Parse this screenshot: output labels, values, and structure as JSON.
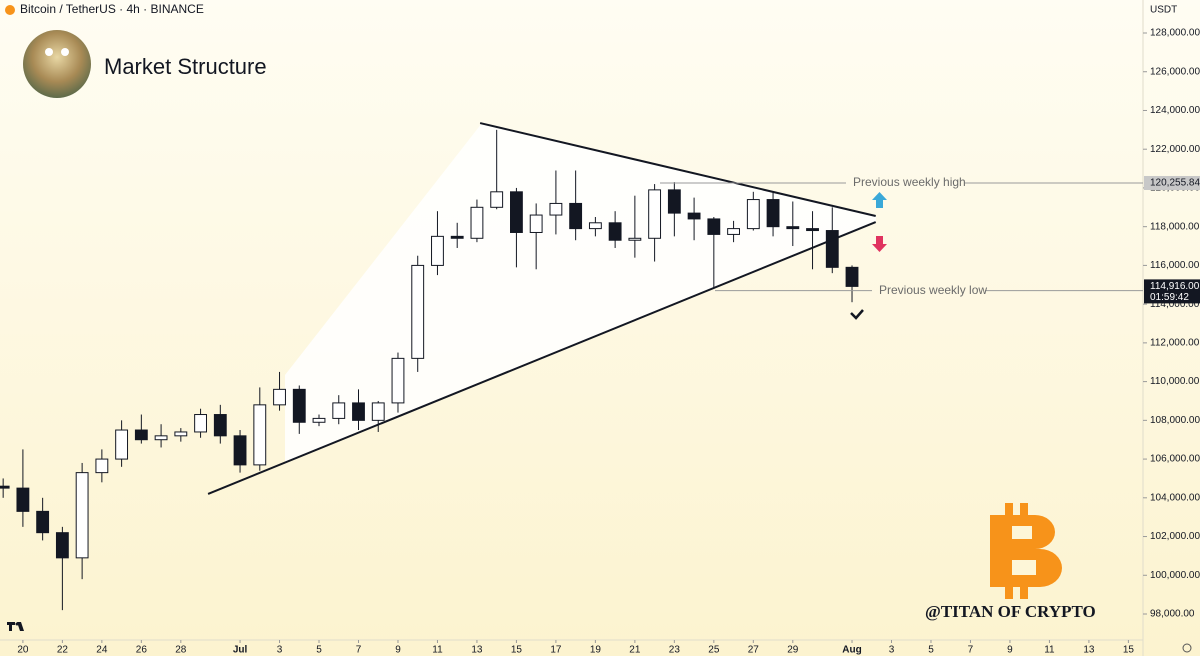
{
  "header": {
    "symbol": "Bitcoin / TetherUS · 4h · BINANCE",
    "currency": "USDT"
  },
  "chart_data": {
    "type": "candlestick",
    "title": "Market Structure",
    "x": [
      -1,
      0,
      1,
      2,
      3,
      4,
      5,
      6,
      7,
      8,
      9,
      10,
      11,
      12,
      13,
      14,
      15,
      16,
      17,
      18,
      19,
      20,
      21,
      22,
      23,
      24,
      25,
      26,
      27,
      28,
      29,
      30,
      31,
      32,
      33,
      34,
      35,
      36,
      37,
      38,
      39,
      40,
      41,
      42
    ],
    "open": [
      104600,
      104500,
      103300,
      102200,
      100900,
      105300,
      106000,
      107500,
      107000,
      107200,
      107400,
      108300,
      107200,
      105700,
      108800,
      109600,
      107900,
      108100,
      108900,
      108000,
      108900,
      111200,
      116000,
      117500,
      117400,
      119000,
      119800,
      117700,
      118600,
      119200,
      117900,
      118200,
      117300,
      117400,
      119900,
      118700,
      118400,
      117600,
      117900,
      119400,
      118000,
      117900,
      117800,
      115900
    ],
    "high": [
      105000,
      106500,
      104000,
      102500,
      105800,
      106500,
      108000,
      108300,
      107800,
      107600,
      108600,
      108800,
      107500,
      109700,
      110500,
      109800,
      108300,
      109300,
      109600,
      109000,
      111500,
      116500,
      118800,
      118200,
      119400,
      123000,
      120000,
      119200,
      120900,
      120900,
      118500,
      118800,
      119600,
      120200,
      120300,
      119500,
      118500,
      118300,
      119800,
      119800,
      119300,
      118800,
      119000,
      116000
    ],
    "low": [
      104000,
      102500,
      101800,
      98200,
      99800,
      104800,
      105600,
      106800,
      106600,
      106900,
      107100,
      106800,
      105300,
      105400,
      108500,
      107300,
      107700,
      107800,
      107500,
      107400,
      108400,
      110500,
      115500,
      116900,
      117200,
      118900,
      115900,
      115800,
      117600,
      117300,
      117500,
      116900,
      116400,
      116200,
      117500,
      117300,
      114800,
      117200,
      117800,
      117500,
      117000,
      115800,
      115600,
      114100
    ],
    "close": [
      104500,
      103300,
      102200,
      100900,
      105300,
      106000,
      107500,
      107000,
      107200,
      107400,
      108300,
      107200,
      105700,
      108800,
      109600,
      107900,
      108100,
      108900,
      108000,
      108900,
      111200,
      116000,
      117500,
      117400,
      119000,
      119800,
      117700,
      118600,
      119200,
      117900,
      118200,
      117300,
      117400,
      119900,
      118700,
      118400,
      117600,
      117900,
      119400,
      118000,
      117900,
      117800,
      115900,
      114916
    ],
    "up_color": "#ffffff",
    "down_color": "#131722",
    "xlim": [
      -1.16,
      56.74
    ],
    "xticks": [
      {
        "value": 0,
        "label": "20"
      },
      {
        "value": 2,
        "label": "22"
      },
      {
        "value": 4,
        "label": "24"
      },
      {
        "value": 6,
        "label": "26"
      },
      {
        "value": 8,
        "label": "28"
      },
      {
        "value": 11,
        "label": "Jul"
      },
      {
        "value": 13,
        "label": "3"
      },
      {
        "value": 15,
        "label": "5"
      },
      {
        "value": 17,
        "label": "7"
      },
      {
        "value": 19,
        "label": "9"
      },
      {
        "value": 21,
        "label": "11"
      },
      {
        "value": 23,
        "label": "13"
      },
      {
        "value": 25,
        "label": "15"
      },
      {
        "value": 27,
        "label": "17"
      },
      {
        "value": 29,
        "label": "19"
      },
      {
        "value": 31,
        "label": "21"
      },
      {
        "value": 33,
        "label": "23"
      },
      {
        "value": 35,
        "label": "25"
      },
      {
        "value": 37,
        "label": "27"
      },
      {
        "value": 39,
        "label": "29"
      },
      {
        "value": 42,
        "label": "Aug"
      },
      {
        "value": 44,
        "label": "3"
      },
      {
        "value": 46,
        "label": "5"
      },
      {
        "value": 48,
        "label": "7"
      },
      {
        "value": 50,
        "label": "9"
      },
      {
        "value": 52,
        "label": "11"
      },
      {
        "value": 54,
        "label": "13"
      },
      {
        "value": 56,
        "label": "15"
      }
    ],
    "ylim": [
      96658,
      129704
    ],
    "yticks": [
      {
        "value": 98000,
        "label": "98,000.00"
      },
      {
        "value": 100000,
        "label": "100,000.00"
      },
      {
        "value": 102000,
        "label": "102,000.00"
      },
      {
        "value": 104000,
        "label": "104,000.00"
      },
      {
        "value": 106000,
        "label": "106,000.00"
      },
      {
        "value": 108000,
        "label": "108,000.00"
      },
      {
        "value": 110000,
        "label": "110,000.00"
      },
      {
        "value": 112000,
        "label": "112,000.00"
      },
      {
        "value": 114000,
        "label": "114,000.00"
      },
      {
        "value": 116000,
        "label": "116,000.00"
      },
      {
        "value": 118000,
        "label": "118,000.00"
      },
      {
        "value": 120000,
        "label": "120,000.00"
      },
      {
        "value": 122000,
        "label": "122,000.00"
      },
      {
        "value": 124000,
        "label": "124,000.00"
      },
      {
        "value": 126000,
        "label": "126,000.00"
      },
      {
        "value": 128000,
        "label": "128,000.00"
      }
    ],
    "trendlines": [
      {
        "x": [
          23.16,
          43.2
        ],
        "y": [
          123350,
          118550
        ]
      },
      {
        "x": [
          9.38,
          43.2
        ],
        "y": [
          104200,
          118240
        ]
      }
    ],
    "levels": [
      {
        "name": "Previous weekly high",
        "value": 120255.84,
        "value_label": "120,255.84"
      },
      {
        "name": "Previous weekly low",
        "value": 114700
      }
    ],
    "last_price": {
      "value": 114916,
      "label": "114,916.00",
      "countdown": "01:59:42"
    },
    "watermark": "@TITAN OF CRYPTO"
  }
}
